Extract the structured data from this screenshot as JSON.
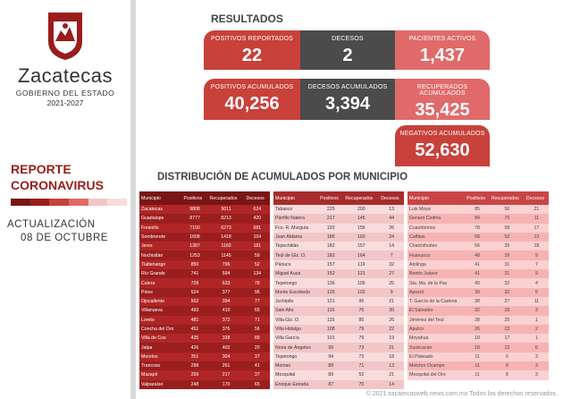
{
  "sidebar": {
    "brand": "Zacatecas",
    "gov": "GOBIERNO DEL ESTADO",
    "period": "2021-2027",
    "report_line1": "REPORTE",
    "report_line2": "CORONAVIRUS",
    "update_label": "ACTUALIZACIÓN",
    "update_date": "08 DE OCTUBRE"
  },
  "colors": {
    "accent": "#c8413a",
    "dark": "#4b4b4b",
    "pink": "#e06a6a",
    "stripes": [
      "#7a1515",
      "#9b1e1e",
      "#c8413a",
      "#e06a6a",
      "#f2c6c6",
      "#f8dcdc"
    ]
  },
  "results": {
    "title": "RESULTADOS",
    "positivos_reportados": {
      "label": "POSITIVOS REPORTADOS",
      "value": "22"
    },
    "decesos": {
      "label": "DECESOS",
      "value": "2"
    },
    "pacientes_activos": {
      "label": "PACIENTES ACTIVOS",
      "value": "1,437"
    },
    "positivos_acumulados": {
      "label": "POSITIVOS ACUMULADOS",
      "value": "40,256"
    },
    "decesos_acumulados": {
      "label": "DECESOS ACUMULADOS",
      "value": "3,394"
    },
    "recuperados_acumulados": {
      "label": "RECUPERADOS ACUMULADOS",
      "value": "35,425"
    },
    "negativos_acumulados": {
      "label": "NEGATIVOS ACUMULADOS",
      "value": "52,630"
    }
  },
  "distribution": {
    "title": "DISTRIBUCIÓN DE ACUMULADOS POR MUNICIPIO",
    "headers": [
      "Municipio",
      "Positivos",
      "Recuperados",
      "Decesos"
    ],
    "table1": [
      [
        "Zacatecas",
        "9808",
        "9011",
        "624"
      ],
      [
        "Guadalupe",
        "8777",
        "8213",
        "420"
      ],
      [
        "Fresnillo",
        "7150",
        "6273",
        "681"
      ],
      [
        "Sombrerete",
        "1608",
        "1418",
        "104"
      ],
      [
        "Jerez",
        "1387",
        "1183",
        "181"
      ],
      [
        "Nochistlán",
        "1253",
        "1145",
        "59"
      ],
      [
        "Tlaltenango",
        "850",
        "796",
        "52"
      ],
      [
        "Río Grande",
        "741",
        "594",
        "134"
      ],
      [
        "Calera",
        "728",
        "633",
        "78"
      ],
      [
        "Pinos",
        "524",
        "377",
        "96"
      ],
      [
        "Ojocaliente",
        "502",
        "394",
        "77"
      ],
      [
        "Villanueva",
        "493",
        "410",
        "65"
      ],
      [
        "Loreto",
        "481",
        "372",
        "71"
      ],
      [
        "Concha del Oro",
        "451",
        "376",
        "56"
      ],
      [
        "Villa de Cos",
        "435",
        "338",
        "89"
      ],
      [
        "Jalpa",
        "426",
        "402",
        "20"
      ],
      [
        "Morelos",
        "351",
        "304",
        "37"
      ],
      [
        "Trancoso",
        "298",
        "261",
        "41"
      ],
      [
        "Mazapil",
        "259",
        "217",
        "37"
      ],
      [
        "Valparaíso",
        "248",
        "170",
        "65"
      ]
    ],
    "table2": [
      [
        "Tabasco",
        "225",
        "200",
        "13"
      ],
      [
        "Pánfilo Natera",
        "217",
        "145",
        "44"
      ],
      [
        "Fco. R. Murguía",
        "192",
        "156",
        "26"
      ],
      [
        "Juan Aldama",
        "186",
        "160",
        "24"
      ],
      [
        "Tepechitlán",
        "182",
        "157",
        "14"
      ],
      [
        "Teúl de Glz. O.",
        "182",
        "164",
        "7"
      ],
      [
        "Pánuco",
        "157",
        "119",
        "32"
      ],
      [
        "Miguel Auza",
        "152",
        "121",
        "27"
      ],
      [
        "Tepetongo",
        "136",
        "106",
        "25"
      ],
      [
        "Monte Escobedo",
        "126",
        "102",
        "9"
      ],
      [
        "Juchipila",
        "121",
        "96",
        "21"
      ],
      [
        "Sain Alto",
        "116",
        "76",
        "30"
      ],
      [
        "Villa Glz. O.",
        "115",
        "85",
        "26"
      ],
      [
        "Villa Hidalgo",
        "108",
        "79",
        "22"
      ],
      [
        "Villa García",
        "101",
        "79",
        "19"
      ],
      [
        "Noria de Ángeles",
        "99",
        "73",
        "21"
      ],
      [
        "Tepetongo",
        "94",
        "73",
        "18"
      ],
      [
        "Momax",
        "89",
        "71",
        "13"
      ],
      [
        "Mezquital",
        "89",
        "52",
        "21"
      ],
      [
        "Enrique Estrada",
        "87",
        "70",
        "14"
      ]
    ],
    "table3": [
      [
        "Luis Moya",
        "85",
        "56",
        "21"
      ],
      [
        "Genaro Codina",
        "84",
        "70",
        "11"
      ],
      [
        "Cuauhtémoc",
        "78",
        "58",
        "17"
      ],
      [
        "Cañitas",
        "68",
        "52",
        "13"
      ],
      [
        "Chalchihuites",
        "56",
        "39",
        "18"
      ],
      [
        "Huanusco",
        "48",
        "39",
        "9"
      ],
      [
        "Atolinga",
        "41",
        "31",
        "7"
      ],
      [
        "Benito Juárez",
        "41",
        "31",
        "9"
      ],
      [
        "Sta. Ma. de la Paz",
        "40",
        "32",
        "4"
      ],
      [
        "Apozol",
        "39",
        "32",
        "5"
      ],
      [
        "T. García de la Cadena",
        "38",
        "27",
        "11"
      ],
      [
        "El Salvador",
        "32",
        "28",
        "3"
      ],
      [
        "Jiménez del Teul",
        "28",
        "25",
        "1"
      ],
      [
        "Apulco",
        "26",
        "23",
        "2"
      ],
      [
        "Moyahua",
        "19",
        "17",
        "1"
      ],
      [
        "Susticacán",
        "18",
        "12",
        "6"
      ],
      [
        "El Plateado",
        "11",
        "6",
        "3"
      ],
      [
        "Melchor Ocampo",
        "11",
        "8",
        "3"
      ],
      [
        "Mezquital del Oro",
        "11",
        "8",
        "3"
      ]
    ]
  },
  "watermark": "© 2021 zacatecasweb.news.com.mx Todos los derechos reservados."
}
